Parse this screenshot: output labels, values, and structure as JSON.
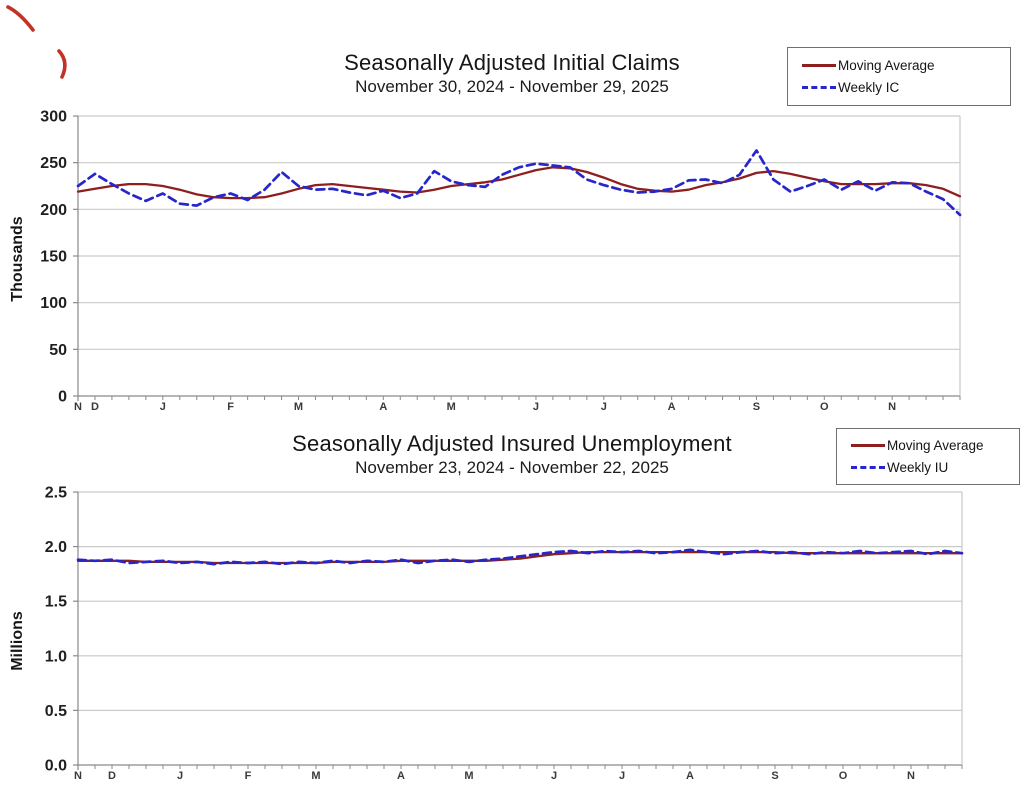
{
  "decorations": {
    "red_pen_mark_color": "#c23327"
  },
  "chart_data": [
    {
      "type": "line",
      "title": "Seasonally Adjusted Initial Claims",
      "subtitle": "November 30, 2024 - November 29, 2025",
      "ylabel": "Thousands",
      "ylim": [
        0,
        300
      ],
      "ytick_step": 50,
      "ytick_decimals": 0,
      "grid": "horizontal",
      "legend_position": "top-right",
      "legend": [
        {
          "label": "Moving Average",
          "color": "#8e1f1f",
          "dash": false
        },
        {
          "label": "Weekly IC",
          "color": "#2626cb",
          "dash": true
        }
      ],
      "month_ticks": [
        {
          "label": "N",
          "week": 0
        },
        {
          "label": "D",
          "week": 1
        },
        {
          "label": "J",
          "week": 5
        },
        {
          "label": "F",
          "week": 9
        },
        {
          "label": "M",
          "week": 13
        },
        {
          "label": "A",
          "week": 18
        },
        {
          "label": "M",
          "week": 22
        },
        {
          "label": "J",
          "week": 27
        },
        {
          "label": "J",
          "week": 31
        },
        {
          "label": "A",
          "week": 35
        },
        {
          "label": "S",
          "week": 40
        },
        {
          "label": "O",
          "week": 44
        },
        {
          "label": "N",
          "week": 48
        }
      ],
      "series": [
        {
          "name": "Moving Average",
          "color": "#8e1f1f",
          "dash": false,
          "values": [
            219,
            222,
            225,
            227,
            227,
            225,
            221,
            216,
            213,
            212,
            212,
            213,
            217,
            222,
            226,
            227,
            225,
            223,
            221,
            219,
            218,
            221,
            225,
            227,
            229,
            232,
            237,
            242,
            245,
            244,
            240,
            234,
            227,
            222,
            220,
            219,
            221,
            226,
            229,
            233,
            239,
            241,
            238,
            234,
            230,
            227,
            227,
            227,
            228,
            228,
            226,
            222,
            214
          ]
        },
        {
          "name": "Weekly IC",
          "color": "#2626cb",
          "dash": true,
          "values": [
            225,
            238,
            227,
            217,
            209,
            217,
            206,
            204,
            213,
            217,
            210,
            221,
            240,
            225,
            221,
            222,
            218,
            215,
            220,
            212,
            217,
            241,
            230,
            226,
            224,
            237,
            245,
            249,
            247,
            245,
            232,
            226,
            221,
            218,
            219,
            222,
            231,
            232,
            228,
            237,
            263,
            232,
            219,
            225,
            232,
            221,
            230,
            220,
            229,
            228,
            219,
            211,
            194
          ]
        }
      ]
    },
    {
      "type": "line",
      "title": "Seasonally Adjusted Insured Unemployment",
      "subtitle": "November 23, 2024 - November 22, 2025",
      "ylabel": "Millions",
      "ylim": [
        0,
        2.5
      ],
      "ytick_step": 0.5,
      "ytick_decimals": 1,
      "grid": "horizontal",
      "legend_position": "top-right",
      "legend": [
        {
          "label": "Moving Average",
          "color": "#8e1f1f",
          "dash": false
        },
        {
          "label": "Weekly IU",
          "color": "#2626cb",
          "dash": true
        }
      ],
      "month_ticks": [
        {
          "label": "N",
          "week": 0
        },
        {
          "label": "D",
          "week": 2
        },
        {
          "label": "J",
          "week": 6
        },
        {
          "label": "F",
          "week": 10
        },
        {
          "label": "M",
          "week": 14
        },
        {
          "label": "A",
          "week": 19
        },
        {
          "label": "M",
          "week": 23
        },
        {
          "label": "J",
          "week": 28
        },
        {
          "label": "J",
          "week": 32
        },
        {
          "label": "A",
          "week": 36
        },
        {
          "label": "S",
          "week": 41
        },
        {
          "label": "O",
          "week": 45
        },
        {
          "label": "N",
          "week": 49
        }
      ],
      "series": [
        {
          "name": "Moving Average",
          "color": "#8e1f1f",
          "dash": false,
          "values": [
            1.87,
            1.87,
            1.87,
            1.87,
            1.86,
            1.86,
            1.86,
            1.86,
            1.85,
            1.85,
            1.85,
            1.85,
            1.85,
            1.85,
            1.85,
            1.86,
            1.86,
            1.86,
            1.86,
            1.87,
            1.87,
            1.87,
            1.87,
            1.87,
            1.87,
            1.88,
            1.89,
            1.91,
            1.93,
            1.94,
            1.95,
            1.95,
            1.95,
            1.95,
            1.95,
            1.95,
            1.95,
            1.95,
            1.95,
            1.95,
            1.95,
            1.95,
            1.94,
            1.94,
            1.94,
            1.94,
            1.94,
            1.94,
            1.94,
            1.94,
            1.94,
            1.94,
            1.94
          ]
        },
        {
          "name": "Weekly IU",
          "color": "#2626cb",
          "dash": true,
          "values": [
            1.88,
            1.87,
            1.88,
            1.85,
            1.86,
            1.87,
            1.85,
            1.86,
            1.84,
            1.86,
            1.85,
            1.86,
            1.84,
            1.86,
            1.85,
            1.87,
            1.85,
            1.87,
            1.86,
            1.88,
            1.85,
            1.87,
            1.88,
            1.86,
            1.88,
            1.89,
            1.91,
            1.93,
            1.95,
            1.96,
            1.94,
            1.96,
            1.95,
            1.96,
            1.94,
            1.95,
            1.97,
            1.95,
            1.93,
            1.95,
            1.96,
            1.94,
            1.95,
            1.93,
            1.95,
            1.94,
            1.96,
            1.94,
            1.95,
            1.96,
            1.93,
            1.96,
            1.94
          ]
        }
      ]
    }
  ]
}
